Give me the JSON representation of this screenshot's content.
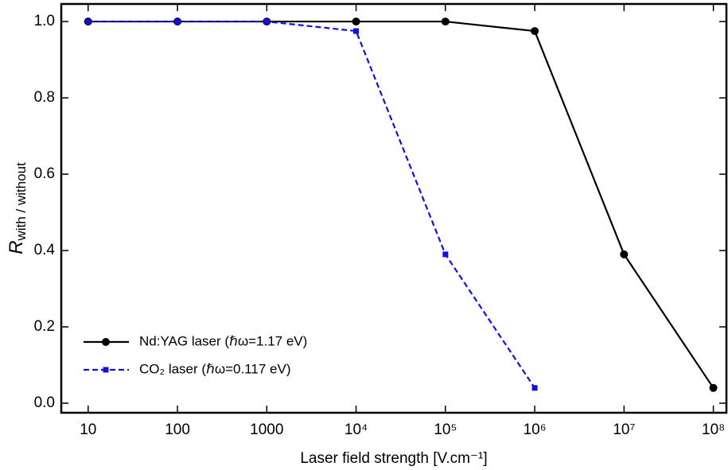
{
  "chart_data": {
    "type": "line",
    "xlabel": "Laser field strength [V.cm⁻¹]",
    "ylabel": {
      "main": "R",
      "sub": "with / without"
    },
    "x": [
      10,
      100,
      1000,
      10000,
      100000,
      1000000,
      10000000,
      100000000
    ],
    "xscale": "log",
    "xlim": [
      5,
      140000000
    ],
    "xticks": [
      10,
      100,
      1000,
      {
        "value": 10000,
        "label": "10⁴"
      },
      {
        "value": 100000,
        "label": "10⁵"
      },
      {
        "value": 1000000,
        "label": "10⁶"
      },
      {
        "value": 10000000,
        "label": "10⁷"
      },
      {
        "value": 100000000,
        "label": "10⁸"
      }
    ],
    "ylim": [
      -0.025,
      1.046
    ],
    "yticks": [
      {
        "value": 0,
        "label": "0.0"
      },
      0.2,
      0.4,
      0.6,
      0.8,
      {
        "value": 1,
        "label": "1.0"
      }
    ],
    "legend": "lower left",
    "series": [
      {
        "name": "Nd:YAG laser (ℏω=1.17 eV)",
        "color": "#000000",
        "marker": "circle",
        "dash": false,
        "values": [
          1,
          1,
          1,
          1,
          1,
          0.975,
          0.39,
          0.04
        ]
      },
      {
        "name": "CO₂ laser (ℏω=0.117 eV)",
        "color": "#1010e0",
        "marker": "square",
        "dash": true,
        "values": [
          1,
          1,
          1,
          0.975,
          0.39,
          0.04,
          null,
          null
        ]
      }
    ]
  }
}
